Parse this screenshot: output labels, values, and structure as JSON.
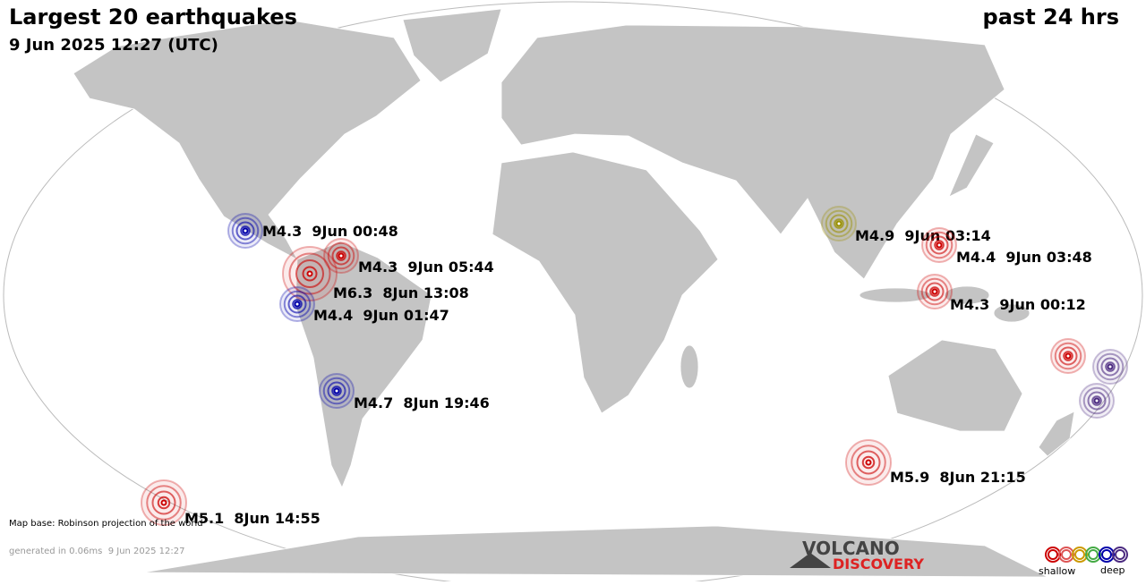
{
  "header": {
    "title": "Largest 20 earthquakes",
    "period": "past 24 hrs",
    "timestamp": "9 Jun 2025 12:27 (UTC)"
  },
  "quakes": [
    {
      "label": "M4.3  9Jun 00:48"
    },
    {
      "label": "M4.3  9Jun 05:44"
    },
    {
      "label": "M6.3  8Jun 13:08"
    },
    {
      "label": "M4.4  9Jun 01:47"
    },
    {
      "label": "M4.7  8Jun 19:46"
    },
    {
      "label": "M5.1  8Jun 14:55"
    },
    {
      "label": "M4.9  9Jun 03:14"
    },
    {
      "label": "M4.4  9Jun 03:48"
    },
    {
      "label": "M4.3  9Jun 00:12"
    },
    {
      "label": "M5.9  8Jun 21:15"
    }
  ],
  "footer": {
    "map_base": "Map base: Robinson projection of the world",
    "generated": "generated in 0.06ms  9 Jun 2025 12:27"
  },
  "logo": {
    "line1": "VOLCANO",
    "line2": "DISCOVERY"
  },
  "legend": {
    "shallow": "shallow",
    "deep": "deep"
  }
}
